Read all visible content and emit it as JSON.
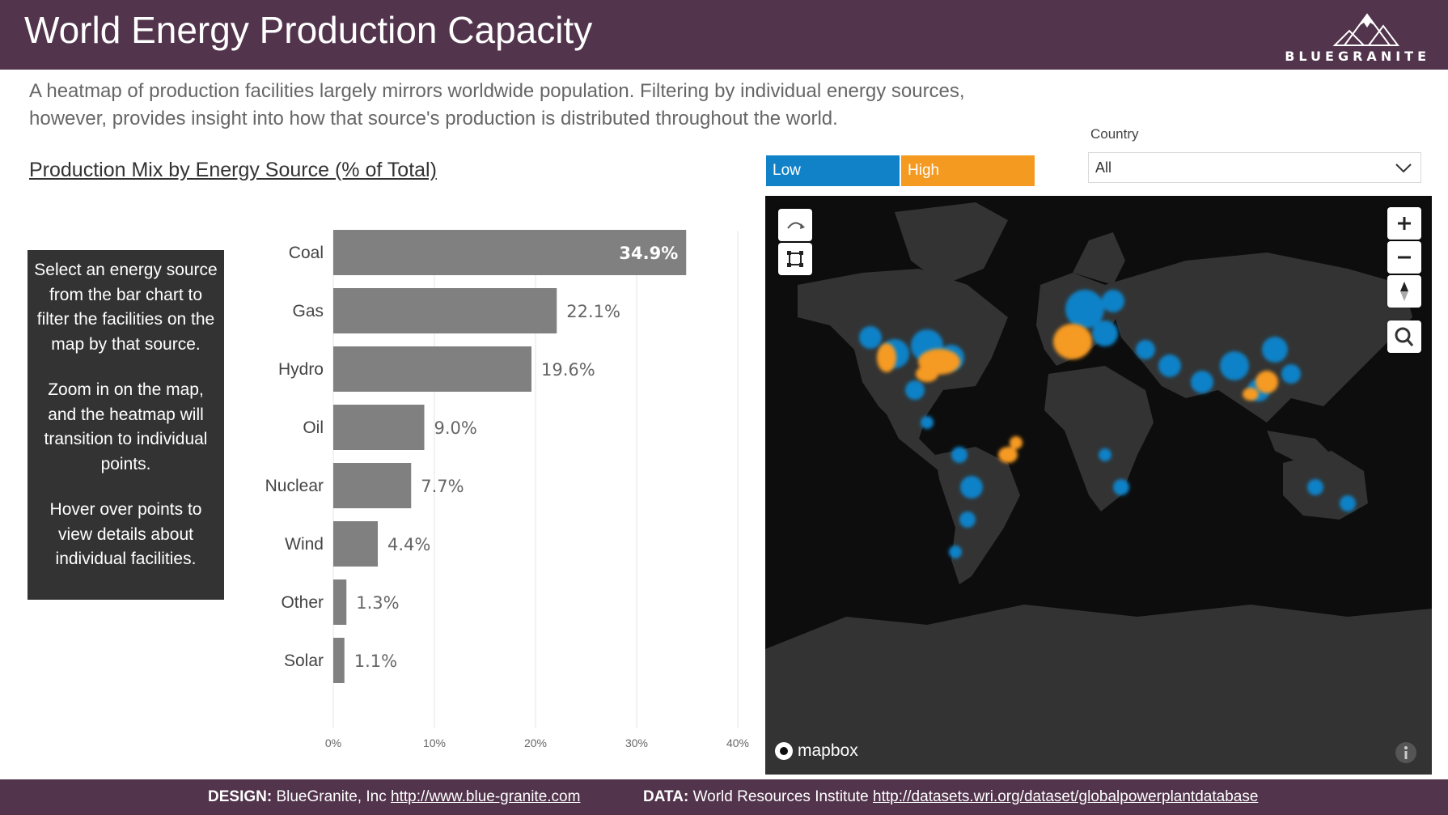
{
  "header": {
    "title": "World Energy Production Capacity",
    "logo_text": "BLUEGRANITE"
  },
  "subtitle": {
    "line1": "A heatmap of production facilities largely mirrors worldwide population. Filtering by individual energy sources,",
    "line2": "however, provides insight into how that source's production is distributed throughout the world."
  },
  "chart_title": "Production Mix by Energy Source (% of Total)",
  "info_box": {
    "p1": "Select an energy source from the bar chart to filter the facilities on the map by that source.",
    "p2": "Zoom in on the map, and the heatmap will transition to individual points.",
    "p3": "Hover over points to view details about individual facilities."
  },
  "chart_data": {
    "type": "bar",
    "orientation": "horizontal",
    "title": "Production Mix by Energy Source (% of Total)",
    "categories": [
      "Coal",
      "Gas",
      "Hydro",
      "Oil",
      "Nuclear",
      "Wind",
      "Other",
      "Solar"
    ],
    "values": [
      34.9,
      22.1,
      19.6,
      9.0,
      7.7,
      4.4,
      1.3,
      1.1
    ],
    "value_labels": [
      "34.9%",
      "22.1%",
      "19.6%",
      "9.0%",
      "7.7%",
      "4.4%",
      "1.3%",
      "1.1%"
    ],
    "xlim": [
      0,
      40
    ],
    "xticks": [
      "0%",
      "10%",
      "20%",
      "30%",
      "40%"
    ],
    "grid": true,
    "bar_color": "#808080"
  },
  "heat_legend": {
    "low": "Low",
    "high": "High",
    "low_color": "#1182c8",
    "high_color": "#f59a21"
  },
  "filter": {
    "label": "Country",
    "value": "All"
  },
  "map": {
    "attribution": "mapbox",
    "controls": [
      "rotate-icon",
      "selection-icon",
      "zoom-in-icon",
      "zoom-out-icon",
      "compass-icon",
      "search-icon",
      "info-icon"
    ]
  },
  "footer": {
    "design_label": "DESIGN:",
    "design_text": "BlueGranite, Inc",
    "design_link": "http://www.blue-granite.com",
    "data_label": "DATA:",
    "data_text": "World Resources Institute",
    "data_link": "http://datasets.wri.org/dataset/globalpowerplantdatabase"
  }
}
